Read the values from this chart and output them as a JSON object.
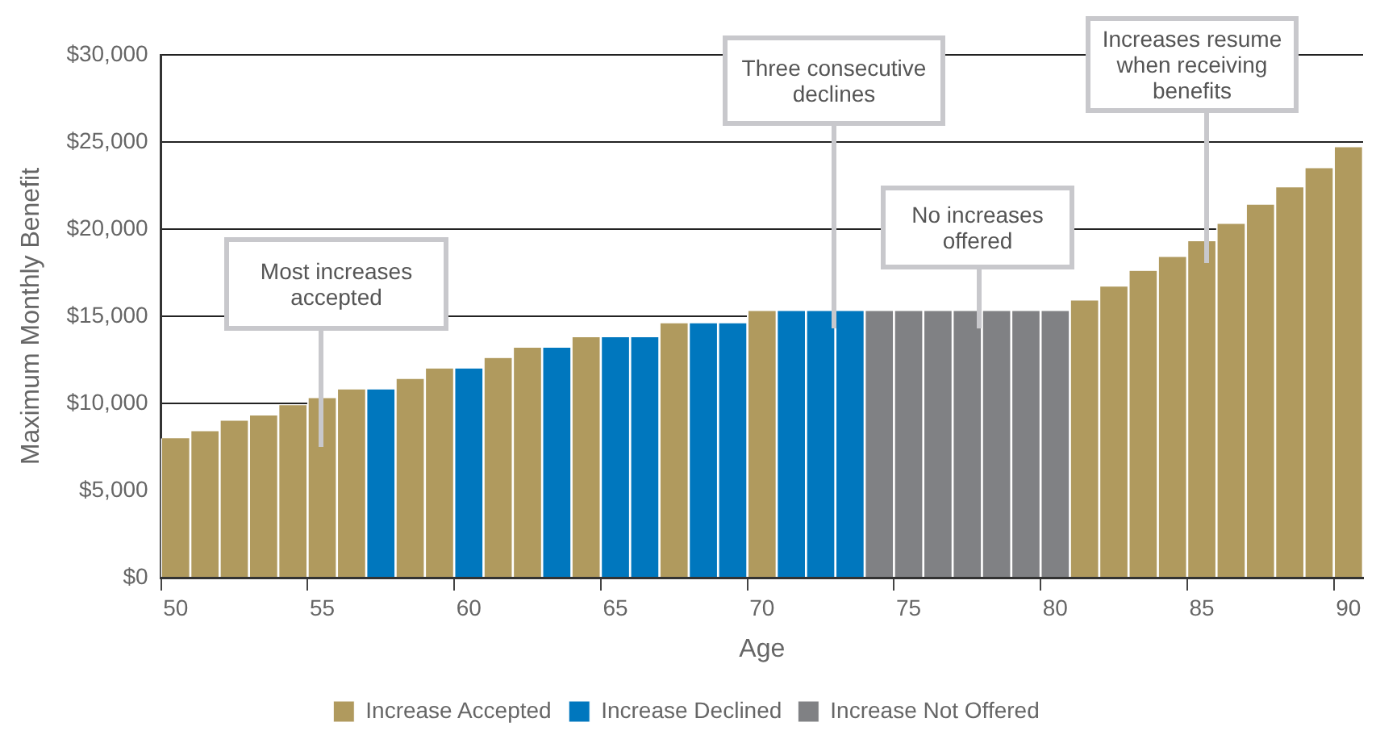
{
  "chart_data": {
    "type": "bar",
    "xlabel": "Age",
    "ylabel": "Maximum Monthly Benefit",
    "categories": [
      "50",
      null,
      null,
      null,
      null,
      "55",
      null,
      null,
      null,
      null,
      "60",
      null,
      null,
      null,
      null,
      "65",
      null,
      null,
      null,
      null,
      "70",
      null,
      null,
      null,
      null,
      "75",
      null,
      null,
      null,
      null,
      "80",
      null,
      null,
      null,
      null,
      "85",
      null,
      null,
      null,
      null,
      "90"
    ],
    "series": [
      {
        "name": "Increase Accepted",
        "color": "#b09a5e",
        "values": [
          8000,
          8400,
          9000,
          9300,
          9900,
          10300,
          10800,
          null,
          11400,
          12000,
          null,
          12600,
          13200,
          null,
          13800,
          null,
          null,
          14600,
          null,
          null,
          15300,
          null,
          null,
          null,
          null,
          null,
          null,
          null,
          null,
          null,
          null,
          15900,
          16700,
          17600,
          18400,
          19300,
          20300,
          21400,
          22400,
          23500,
          24700
        ]
      },
      {
        "name": "Increase Declined",
        "color": "#0077be",
        "values": [
          null,
          null,
          null,
          null,
          null,
          null,
          null,
          10800,
          null,
          null,
          12000,
          null,
          null,
          13200,
          null,
          13800,
          13800,
          null,
          14600,
          14600,
          null,
          15300,
          15300,
          15300,
          null,
          null,
          null,
          null,
          null,
          null,
          null,
          null,
          null,
          null,
          null,
          null,
          null,
          null,
          null,
          null,
          null
        ]
      },
      {
        "name": "Increase Not Offered",
        "color": "#808184",
        "values": [
          null,
          null,
          null,
          null,
          null,
          null,
          null,
          null,
          null,
          null,
          null,
          null,
          null,
          null,
          null,
          null,
          null,
          null,
          null,
          null,
          null,
          null,
          null,
          null,
          15300,
          15300,
          15300,
          15300,
          15300,
          15300,
          15300,
          null,
          null,
          null,
          null,
          null,
          null,
          null,
          null,
          null,
          null
        ]
      }
    ],
    "ylim": [
      0,
      30000
    ],
    "yticks": [
      {
        "value": 0,
        "label": "$0"
      },
      {
        "value": 5000,
        "label": "$5,000"
      },
      {
        "value": 10000,
        "label": "$10,000"
      },
      {
        "value": 15000,
        "label": "$15,000"
      },
      {
        "value": 20000,
        "label": "$20,000"
      },
      {
        "value": 25000,
        "label": "$25,000"
      },
      {
        "value": 30000,
        "label": "$30,000"
      }
    ],
    "grid": "y",
    "legend": "bottom",
    "annotations": [
      "Most increases accepted",
      {
        "text": "Three consecutive declines",
        "y": 14300
      },
      {
        "text": "No increases offered",
        "y": 14300
      },
      "Increases resume when receiving benefits"
    ]
  }
}
